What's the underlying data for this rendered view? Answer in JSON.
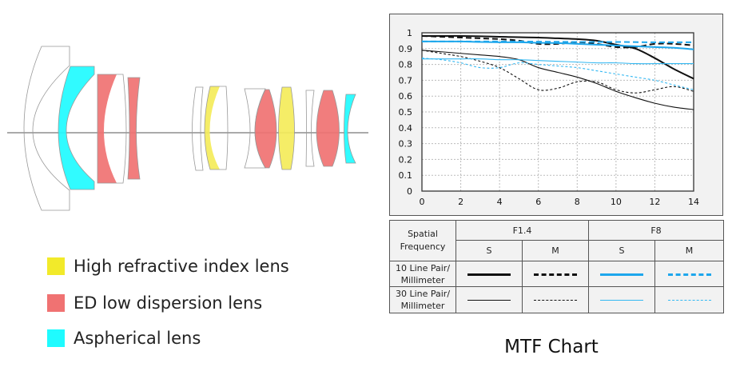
{
  "legend": [
    {
      "label": "High refractive index lens",
      "color": "#f2ea2a"
    },
    {
      "label": "ED low dispersion lens",
      "color": "#f07272"
    },
    {
      "label": "Aspherical lens",
      "color": "#1ffbff"
    }
  ],
  "colors": {
    "yellow": "#f4ec5a",
    "red": "#f07272",
    "cyan": "#1ffbff",
    "black": "#111111",
    "blue": "#1ea7ec"
  },
  "chart_data": {
    "type": "line",
    "title": "MTF Chart",
    "xlabel": "",
    "ylabel": "",
    "xlim": [
      0,
      14
    ],
    "ylim": [
      0,
      1
    ],
    "grid": true,
    "x_ticks": [
      "0",
      "2",
      "4",
      "6",
      "8",
      "10",
      "12",
      "14"
    ],
    "y_ticks": [
      "0",
      "0.1",
      "0.2",
      "0.3",
      "0.4",
      "0.5",
      "0.6",
      "0.7",
      "0.8",
      "0.9",
      "1"
    ],
    "x": [
      0,
      1,
      2,
      3,
      4,
      5,
      6,
      7,
      8,
      9,
      10,
      11,
      12,
      13,
      14
    ],
    "series": [
      {
        "name": "F1.4 S 10 lp/mm",
        "style": "thick-solid",
        "color": "#111111",
        "values": [
          0.98,
          0.98,
          0.98,
          0.978,
          0.975,
          0.972,
          0.97,
          0.965,
          0.96,
          0.95,
          0.925,
          0.9,
          0.84,
          0.77,
          0.71
        ]
      },
      {
        "name": "F1.4 M 10 lp/mm",
        "style": "thick-dashed",
        "color": "#111111",
        "values": [
          0.98,
          0.975,
          0.97,
          0.965,
          0.96,
          0.95,
          0.93,
          0.93,
          0.94,
          0.93,
          0.91,
          0.91,
          0.93,
          0.93,
          0.92
        ]
      },
      {
        "name": "F8 S 10 lp/mm",
        "style": "thick-solid",
        "color": "#1ea7ec",
        "values": [
          0.945,
          0.945,
          0.945,
          0.942,
          0.94,
          0.94,
          0.937,
          0.935,
          0.93,
          0.925,
          0.92,
          0.915,
          0.91,
          0.905,
          0.895
        ]
      },
      {
        "name": "F8 M 10 lp/mm",
        "style": "thick-dashed",
        "color": "#1ea7ec",
        "values": [
          0.945,
          0.945,
          0.945,
          0.945,
          0.945,
          0.945,
          0.944,
          0.943,
          0.942,
          0.942,
          0.942,
          0.941,
          0.94,
          0.94,
          0.94
        ]
      },
      {
        "name": "F1.4 S 30 lp/mm",
        "style": "thin-solid",
        "color": "#111111",
        "values": [
          0.89,
          0.88,
          0.87,
          0.86,
          0.85,
          0.83,
          0.78,
          0.75,
          0.72,
          0.68,
          0.63,
          0.59,
          0.555,
          0.53,
          0.515
        ]
      },
      {
        "name": "F1.4 M 30 lp/mm",
        "style": "thin-dashed",
        "color": "#111111",
        "values": [
          0.89,
          0.87,
          0.85,
          0.82,
          0.78,
          0.71,
          0.64,
          0.65,
          0.69,
          0.69,
          0.64,
          0.62,
          0.64,
          0.66,
          0.63
        ]
      },
      {
        "name": "F8 S 30 lp/mm",
        "style": "thin-solid",
        "color": "#33b8f2",
        "values": [
          0.835,
          0.835,
          0.835,
          0.835,
          0.83,
          0.83,
          0.825,
          0.82,
          0.815,
          0.81,
          0.81,
          0.805,
          0.805,
          0.805,
          0.805
        ]
      },
      {
        "name": "F8 M 30 lp/mm",
        "style": "thin-dashed",
        "color": "#33b8f2",
        "values": [
          0.84,
          0.83,
          0.81,
          0.78,
          0.78,
          0.81,
          0.8,
          0.79,
          0.78,
          0.76,
          0.74,
          0.72,
          0.7,
          0.67,
          0.64
        ]
      }
    ]
  },
  "table": {
    "header": "Spatial Frequency",
    "apertures": [
      "F1.4",
      "F8"
    ],
    "sub": [
      "S",
      "M",
      "S",
      "M"
    ],
    "rows": [
      "10 Line Pair/ Millimeter",
      "30 Line Pair/ Millimeter"
    ]
  }
}
